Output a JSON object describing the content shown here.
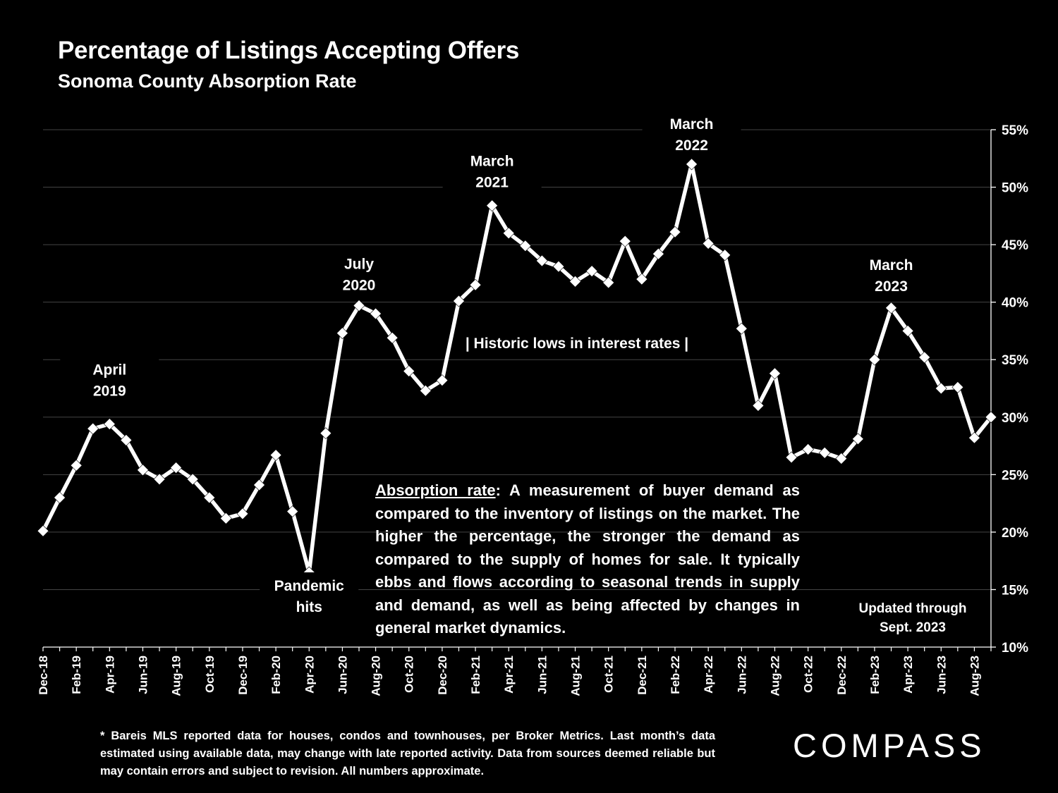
{
  "header": {
    "title": "Percentage of Listings Accepting Offers",
    "subtitle": "Sonoma County Absorption Rate"
  },
  "explanation": {
    "term": "Absorption rate",
    "body": ":  A measurement of buyer demand as compared to the inventory of listings on the market. The higher the percentage, the stronger the demand as compared to the supply of homes for sale. It typically ebbs and flows according to seasonal trends in supply and demand, as well as being affected by changes in general market dynamics."
  },
  "footnote": "* Bareis MLS reported data for houses, condos and townhouses, per Broker Metrics. Last month’s data estimated using available data, may change with late reported activity. Data from sources deemed reliable but may contain errors and subject to revision. All numbers approximate.",
  "logo": "COMPASS",
  "colors": {
    "background": "#000000",
    "line": "#ffffff",
    "grid": "#444444",
    "text": "#ffffff"
  },
  "chart_data": {
    "type": "line",
    "title": "Percentage of Listings Accepting Offers",
    "subtitle": "Sonoma County Absorption Rate",
    "x": [
      "Dec-18",
      "Jan-19",
      "Feb-19",
      "Mar-19",
      "Apr-19",
      "May-19",
      "Jun-19",
      "Jul-19",
      "Aug-19",
      "Sep-19",
      "Oct-19",
      "Nov-19",
      "Dec-19",
      "Jan-20",
      "Feb-20",
      "Mar-20",
      "Apr-20",
      "May-20",
      "Jun-20",
      "Jul-20",
      "Aug-20",
      "Sep-20",
      "Oct-20",
      "Nov-20",
      "Dec-20",
      "Jan-21",
      "Feb-21",
      "Mar-21",
      "Apr-21",
      "May-21",
      "Jun-21",
      "Jul-21",
      "Aug-21",
      "Sep-21",
      "Oct-21",
      "Nov-21",
      "Dec-21",
      "Jan-22",
      "Feb-22",
      "Mar-22",
      "Apr-22",
      "May-22",
      "Jun-22",
      "Jul-22",
      "Aug-22",
      "Sep-22",
      "Oct-22",
      "Nov-22",
      "Dec-22",
      "Jan-23",
      "Feb-23",
      "Mar-23",
      "Apr-23",
      "May-23",
      "Jun-23",
      "Jul-23",
      "Aug-23",
      "Sep-23"
    ],
    "x_tick_labels": [
      "Dec-18",
      "Feb-19",
      "Apr-19",
      "Jun-19",
      "Aug-19",
      "Oct-19",
      "Dec-19",
      "Feb-20",
      "Apr-20",
      "Jun-20",
      "Aug-20",
      "Oct-20",
      "Dec-20",
      "Feb-21",
      "Apr-21",
      "Jun-21",
      "Aug-21",
      "Oct-21",
      "Dec-21",
      "Feb-22",
      "Apr-22",
      "Jun-22",
      "Aug-22",
      "Oct-22",
      "Dec-22",
      "Feb-23",
      "Apr-23",
      "Jun-23",
      "Aug-23"
    ],
    "series": [
      {
        "values": [
          20.1,
          23.0,
          25.8,
          29.0,
          29.4,
          28.0,
          25.4,
          24.6,
          25.6,
          24.6,
          23.0,
          21.2,
          21.6,
          24.1,
          26.7,
          21.8,
          16.5,
          28.6,
          37.3,
          39.7,
          39.0,
          36.9,
          34.0,
          32.3,
          33.2,
          40.1,
          41.5,
          48.4,
          46.0,
          44.9,
          43.6,
          43.1,
          41.8,
          42.7,
          41.7,
          45.3,
          42.0,
          44.2,
          46.1,
          52.0,
          45.1,
          44.1,
          37.7,
          31.0,
          33.8,
          26.5,
          27.2,
          26.9,
          26.4,
          28.1,
          35.0,
          39.5,
          37.5,
          35.2,
          32.5,
          32.6,
          28.2,
          30.0
        ]
      }
    ],
    "ylim": [
      10,
      55
    ],
    "y_ticks": [
      "10%",
      "15%",
      "20%",
      "25%",
      "30%",
      "35%",
      "40%",
      "45%",
      "50%",
      "55%"
    ],
    "y_axis_position": "right",
    "grid": true,
    "annotations": [
      {
        "index": 4,
        "line1": "April",
        "line2": "2019"
      },
      {
        "index": 16,
        "line1": "Pandemic",
        "line2": "hits"
      },
      {
        "index": 19,
        "line1": "July",
        "line2": "2020"
      },
      {
        "index": 27,
        "line1": "March",
        "line2": "2021"
      },
      {
        "index": 39,
        "line1": "March",
        "line2": "2022"
      },
      {
        "index": 51,
        "line1": "March",
        "line2": "2023"
      }
    ],
    "range_note": "| Historic lows in interest rates |",
    "update_note": {
      "line1": "Updated through",
      "line2": "Sept. 2023"
    }
  }
}
